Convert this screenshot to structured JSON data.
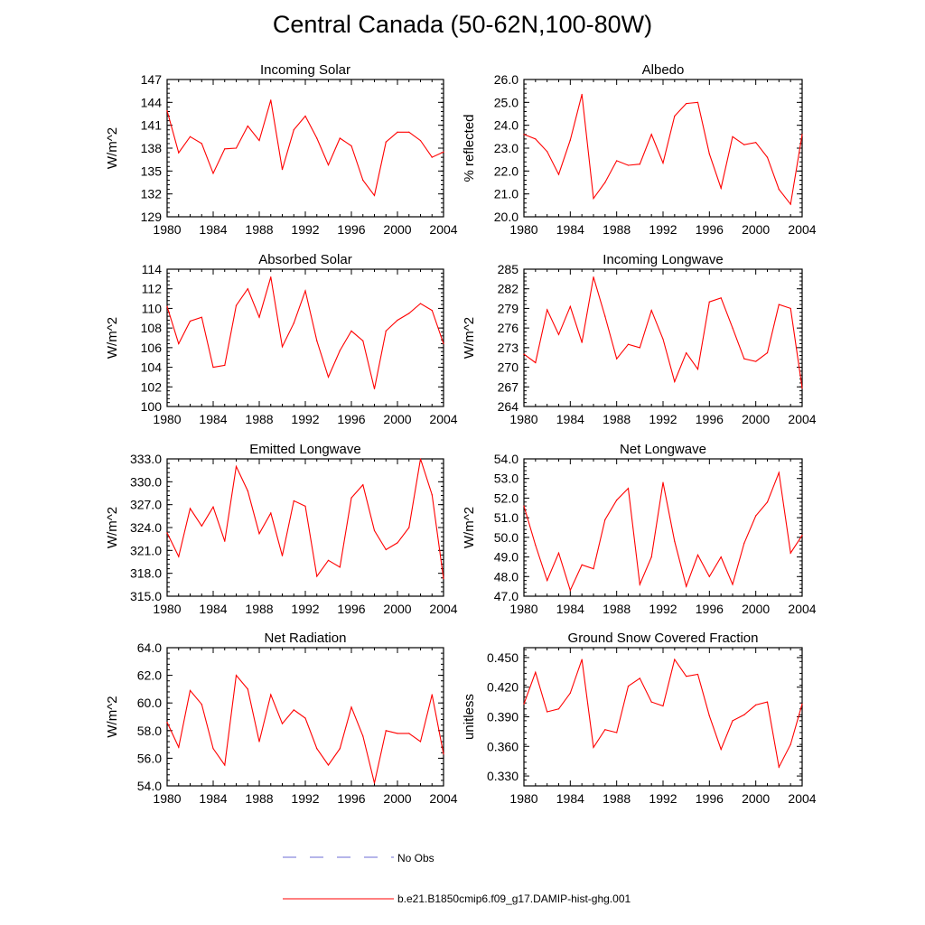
{
  "title": "Central Canada (50-62N,100-80W)",
  "colors": {
    "model": "#ff0000",
    "obs": "#6b6bd6",
    "axis": "#000000"
  },
  "legend": {
    "obs_label": "No Obs",
    "model_label": "b.e21.B1850cmip6.f09_g17.DAMIP-hist-ghg.001"
  },
  "chart_data": [
    {
      "type": "line",
      "title": "Incoming Solar",
      "ylabel": "W/m^2",
      "ylim": [
        129,
        147
      ],
      "yticks": [
        "129",
        "132",
        "135",
        "138",
        "141",
        "144",
        "147"
      ],
      "xlim": [
        1980,
        2004
      ],
      "xticks": [
        "1980",
        "1984",
        "1988",
        "1992",
        "1996",
        "2000",
        "2004"
      ],
      "x": [
        1980,
        1981,
        1982,
        1983,
        1984,
        1985,
        1986,
        1987,
        1988,
        1989,
        1990,
        1991,
        1992,
        1993,
        1994,
        1995,
        1996,
        1997,
        1998,
        1999,
        2000,
        2001,
        2002,
        2003,
        2004
      ],
      "series": [
        {
          "values": [
            142.9,
            137.4,
            139.5,
            138.6,
            134.7,
            137.9,
            138.0,
            140.9,
            139.0,
            144.3,
            135.2,
            140.4,
            142.2,
            139.3,
            135.8,
            139.3,
            138.3,
            133.8,
            131.8,
            138.8,
            140.1,
            140.1,
            139.0,
            136.8,
            137.5
          ]
        }
      ]
    },
    {
      "type": "line",
      "title": "Albedo",
      "ylabel": "% reflected",
      "ylim": [
        20,
        26
      ],
      "yticks": [
        "20.0",
        "21.0",
        "22.0",
        "23.0",
        "24.0",
        "25.0",
        "26.0"
      ],
      "xlim": [
        1980,
        2004
      ],
      "xticks": [
        "1980",
        "1984",
        "1988",
        "1992",
        "1996",
        "2000",
        "2004"
      ],
      "x": [
        1980,
        1981,
        1982,
        1983,
        1984,
        1985,
        1986,
        1987,
        1988,
        1989,
        1990,
        1991,
        1992,
        1993,
        1994,
        1995,
        1996,
        1997,
        1998,
        1999,
        2000,
        2001,
        2002,
        2003,
        2004
      ],
      "series": [
        {
          "values": [
            23.6,
            23.4,
            22.85,
            21.85,
            23.35,
            25.35,
            20.8,
            21.5,
            22.45,
            22.25,
            22.3,
            23.6,
            22.35,
            24.4,
            24.95,
            25.0,
            22.75,
            21.25,
            23.5,
            23.15,
            23.25,
            22.6,
            21.2,
            20.55,
            23.6
          ]
        }
      ]
    },
    {
      "type": "line",
      "title": "Absorbed Solar",
      "ylabel": "W/m^2",
      "ylim": [
        100,
        114
      ],
      "yticks": [
        "100",
        "102",
        "104",
        "106",
        "108",
        "110",
        "112",
        "114"
      ],
      "xlim": [
        1980,
        2004
      ],
      "xticks": [
        "1980",
        "1984",
        "1988",
        "1992",
        "1996",
        "2000",
        "2004"
      ],
      "x": [
        1980,
        1981,
        1982,
        1983,
        1984,
        1985,
        1986,
        1987,
        1988,
        1989,
        1990,
        1991,
        1992,
        1993,
        1994,
        1995,
        1996,
        1997,
        1998,
        1999,
        2000,
        2001,
        2002,
        2003,
        2004
      ],
      "series": [
        {
          "values": [
            110.2,
            106.4,
            108.7,
            109.1,
            104.0,
            104.2,
            110.3,
            112.0,
            109.1,
            113.2,
            106.1,
            108.5,
            111.8,
            106.7,
            103.0,
            105.7,
            107.7,
            106.7,
            101.8,
            107.7,
            108.8,
            109.5,
            110.5,
            109.8,
            106.4
          ]
        }
      ]
    },
    {
      "type": "line",
      "title": "Incoming Longwave",
      "ylabel": "W/m^2",
      "ylim": [
        264,
        285
      ],
      "yticks": [
        "264",
        "267",
        "270",
        "273",
        "276",
        "279",
        "282",
        "285"
      ],
      "xlim": [
        1980,
        2004
      ],
      "xticks": [
        "1980",
        "1984",
        "1988",
        "1992",
        "1996",
        "2000",
        "2004"
      ],
      "x": [
        1980,
        1981,
        1982,
        1983,
        1984,
        1985,
        1986,
        1987,
        1988,
        1989,
        1990,
        1991,
        1992,
        1993,
        1994,
        1995,
        1996,
        1997,
        1998,
        1999,
        2000,
        2001,
        2002,
        2003,
        2004
      ],
      "series": [
        {
          "values": [
            272.0,
            270.7,
            278.8,
            275.0,
            279.3,
            273.8,
            283.8,
            277.8,
            271.3,
            273.5,
            273.0,
            278.7,
            274.3,
            267.8,
            272.2,
            269.7,
            280.0,
            280.6,
            276.0,
            271.3,
            270.9,
            272.2,
            279.6,
            279.0,
            266.8
          ]
        }
      ]
    },
    {
      "type": "line",
      "title": "Emitted Longwave",
      "ylabel": "W/m^2",
      "ylim": [
        315,
        333
      ],
      "yticks": [
        "315.0",
        "318.0",
        "321.0",
        "324.0",
        "327.0",
        "330.0",
        "333.0"
      ],
      "xlim": [
        1980,
        2004
      ],
      "xticks": [
        "1980",
        "1984",
        "1988",
        "1992",
        "1996",
        "2000",
        "2004"
      ],
      "x": [
        1980,
        1981,
        1982,
        1983,
        1984,
        1985,
        1986,
        1987,
        1988,
        1989,
        1990,
        1991,
        1992,
        1993,
        1994,
        1995,
        1996,
        1997,
        1998,
        1999,
        2000,
        2001,
        2002,
        2003,
        2004
      ],
      "series": [
        {
          "values": [
            323.3,
            320.2,
            326.5,
            324.2,
            326.7,
            322.2,
            332.0,
            328.8,
            323.2,
            325.9,
            320.3,
            327.5,
            326.8,
            317.6,
            319.7,
            318.8,
            327.9,
            329.6,
            323.6,
            321.1,
            322.0,
            324.0,
            333.0,
            328.3,
            317.3
          ]
        }
      ]
    },
    {
      "type": "line",
      "title": "Net Longwave",
      "ylabel": "W/m^2",
      "ylim": [
        47,
        54
      ],
      "yticks": [
        "47.0",
        "48.0",
        "49.0",
        "50.0",
        "51.0",
        "52.0",
        "53.0",
        "54.0"
      ],
      "xlim": [
        1980,
        2004
      ],
      "xticks": [
        "1980",
        "1984",
        "1988",
        "1992",
        "1996",
        "2000",
        "2004"
      ],
      "x": [
        1980,
        1981,
        1982,
        1983,
        1984,
        1985,
        1986,
        1987,
        1988,
        1989,
        1990,
        1991,
        1992,
        1993,
        1994,
        1995,
        1996,
        1997,
        1998,
        1999,
        2000,
        2001,
        2002,
        2003,
        2004
      ],
      "series": [
        {
          "values": [
            51.6,
            49.6,
            47.8,
            49.2,
            47.3,
            48.6,
            48.4,
            50.9,
            51.9,
            52.5,
            47.6,
            49.0,
            52.8,
            49.8,
            47.5,
            49.1,
            48.0,
            49.0,
            47.6,
            49.7,
            51.1,
            51.8,
            53.3,
            49.2,
            50.1
          ]
        }
      ]
    },
    {
      "type": "line",
      "title": "Net Radiation",
      "ylabel": "W/m^2",
      "ylim": [
        54,
        64
      ],
      "yticks": [
        "54.0",
        "56.0",
        "58.0",
        "60.0",
        "62.0",
        "64.0"
      ],
      "xlim": [
        1980,
        2004
      ],
      "xticks": [
        "1980",
        "1984",
        "1988",
        "1992",
        "1996",
        "2000",
        "2004"
      ],
      "x": [
        1980,
        1981,
        1982,
        1983,
        1984,
        1985,
        1986,
        1987,
        1988,
        1989,
        1990,
        1991,
        1992,
        1993,
        1994,
        1995,
        1996,
        1997,
        1998,
        1999,
        2000,
        2001,
        2002,
        2003,
        2004
      ],
      "series": [
        {
          "values": [
            58.6,
            56.8,
            60.9,
            59.9,
            56.7,
            55.5,
            62.0,
            61.0,
            57.2,
            60.6,
            58.5,
            59.5,
            58.9,
            56.7,
            55.5,
            56.7,
            59.7,
            57.6,
            54.2,
            58.0,
            57.8,
            57.8,
            57.2,
            60.6,
            56.3
          ]
        }
      ]
    },
    {
      "type": "line",
      "title": "Ground Snow Covered Fraction",
      "ylabel": "unitless",
      "ylim": [
        0.32,
        0.46
      ],
      "yticks": [
        "0.330",
        "0.360",
        "0.390",
        "0.420",
        "0.450"
      ],
      "ytick_values": [
        0.33,
        0.36,
        0.39,
        0.42,
        0.45
      ],
      "xlim": [
        1980,
        2004
      ],
      "xticks": [
        "1980",
        "1984",
        "1988",
        "1992",
        "1996",
        "2000",
        "2004"
      ],
      "x": [
        1980,
        1981,
        1982,
        1983,
        1984,
        1985,
        1986,
        1987,
        1988,
        1989,
        1990,
        1991,
        1992,
        1993,
        1994,
        1995,
        1996,
        1997,
        1998,
        1999,
        2000,
        2001,
        2002,
        2003,
        2004
      ],
      "series": [
        {
          "values": [
            0.403,
            0.435,
            0.395,
            0.398,
            0.414,
            0.448,
            0.359,
            0.377,
            0.374,
            0.421,
            0.429,
            0.405,
            0.401,
            0.448,
            0.431,
            0.433,
            0.391,
            0.357,
            0.386,
            0.392,
            0.402,
            0.405,
            0.339,
            0.362,
            0.403
          ]
        }
      ]
    }
  ]
}
